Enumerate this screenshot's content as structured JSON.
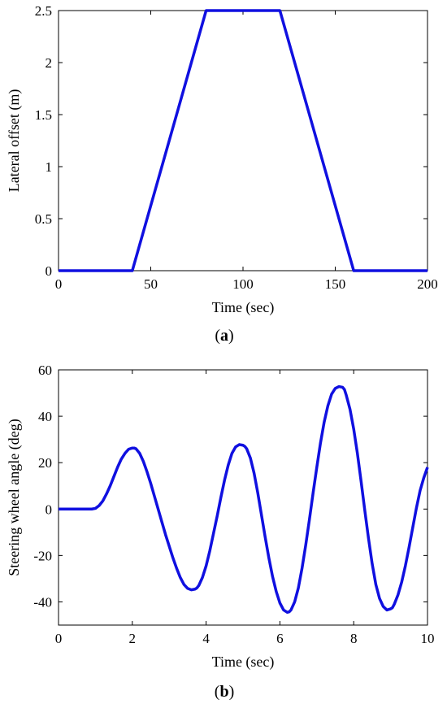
{
  "chart_data": [
    {
      "type": "line",
      "panel_label": "a",
      "xlabel": "Time (sec)",
      "ylabel": "Lateral offset (m)",
      "xlim": [
        0,
        200
      ],
      "ylim": [
        0,
        2.5
      ],
      "xticks": [
        0,
        50,
        100,
        150,
        200
      ],
      "yticks": [
        0,
        0.5,
        1,
        1.5,
        2,
        2.5
      ],
      "xtick_labels": [
        "0",
        "50",
        "100",
        "150",
        "200"
      ],
      "ytick_labels": [
        "0",
        "0.5",
        "1",
        "1.5",
        "2",
        "2.5"
      ],
      "grid": false,
      "color": "#1010e0",
      "series": [
        {
          "x": [
            0,
            40,
            80,
            120,
            160,
            200
          ],
          "y": [
            0,
            0,
            2.5,
            2.5,
            0,
            0
          ]
        }
      ]
    },
    {
      "type": "line",
      "panel_label": "b",
      "xlabel": "Time (sec)",
      "ylabel": "Steering wheel angle (deg)",
      "xlim": [
        0,
        10
      ],
      "ylim": [
        -50,
        60
      ],
      "xticks": [
        0,
        2,
        4,
        6,
        8,
        10
      ],
      "yticks": [
        -40,
        -20,
        0,
        20,
        40,
        60
      ],
      "xtick_labels": [
        "0",
        "2",
        "4",
        "6",
        "8",
        "10"
      ],
      "ytick_labels": [
        "-40",
        "-20",
        "0",
        "20",
        "40",
        "60"
      ],
      "grid": false,
      "color": "#1010e0",
      "series": [
        {
          "x": [
            0,
            0.9,
            1.0,
            1.1,
            1.2,
            1.3,
            1.4,
            1.5,
            1.6,
            1.7,
            1.8,
            1.9,
            2.0,
            2.05,
            2.1,
            2.2,
            2.3,
            2.4,
            2.5,
            2.6,
            2.7,
            2.8,
            2.9,
            3.0,
            3.1,
            3.2,
            3.3,
            3.4,
            3.5,
            3.6,
            3.7,
            3.75,
            3.8,
            3.9,
            4.0,
            4.1,
            4.2,
            4.3,
            4.4,
            4.5,
            4.6,
            4.7,
            4.8,
            4.9,
            5.0,
            5.05,
            5.1,
            5.2,
            5.3,
            5.4,
            5.5,
            5.6,
            5.7,
            5.8,
            5.9,
            6.0,
            6.1,
            6.2,
            6.25,
            6.3,
            6.4,
            6.5,
            6.6,
            6.7,
            6.8,
            6.9,
            7.0,
            7.1,
            7.2,
            7.3,
            7.4,
            7.5,
            7.6,
            7.7,
            7.75,
            7.8,
            7.9,
            8.0,
            8.1,
            8.2,
            8.3,
            8.4,
            8.5,
            8.6,
            8.7,
            8.8,
            8.9,
            9.0,
            9.05,
            9.1,
            9.2,
            9.3,
            9.4,
            9.5,
            9.6,
            9.7,
            9.8,
            9.9,
            10.0
          ],
          "y": [
            0,
            0,
            0.3,
            1.5,
            3.5,
            6.5,
            10,
            14,
            18,
            21.5,
            24,
            25.8,
            26.3,
            26.3,
            26,
            24,
            20.5,
            16,
            11,
            5.5,
            0,
            -5.5,
            -11,
            -16,
            -21,
            -25.5,
            -29.5,
            -32.5,
            -34.2,
            -34.8,
            -34.5,
            -34,
            -33,
            -29.5,
            -24.5,
            -18,
            -10.5,
            -3,
            5,
            12.5,
            19,
            24,
            26.8,
            27.8,
            27.5,
            27,
            26,
            22,
            15.5,
            7,
            -2.5,
            -12,
            -21,
            -29,
            -35.5,
            -40.5,
            -43.5,
            -44.5,
            -44.3,
            -43.5,
            -40,
            -34,
            -25.5,
            -15.5,
            -4.5,
            7,
            18,
            28.5,
            37.5,
            44.5,
            49.5,
            52,
            52.8,
            52.5,
            51.5,
            49,
            43,
            34.5,
            24,
            12,
            -0.5,
            -12.5,
            -23.5,
            -32.5,
            -38.5,
            -42,
            -43.5,
            -43,
            -42.5,
            -41,
            -37,
            -31.5,
            -24.5,
            -16.5,
            -8,
            0.5,
            8,
            13.5,
            18
          ]
        }
      ]
    }
  ]
}
